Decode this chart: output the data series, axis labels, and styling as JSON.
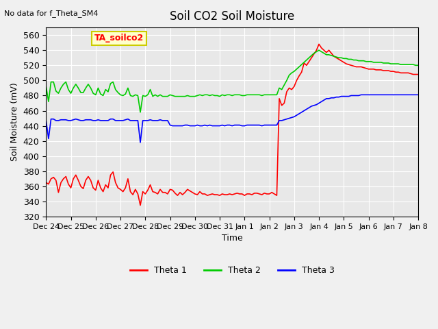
{
  "title": "Soil CO2 Soil Moisture",
  "top_left_note": "No data for f_Theta_SM4",
  "annotation_box": "TA_soilco2",
  "ylabel": "Soil Moisture (mV)",
  "xlabel": "Time",
  "ylim": [
    320,
    570
  ],
  "yticks": [
    320,
    340,
    360,
    380,
    400,
    420,
    440,
    460,
    480,
    500,
    520,
    540,
    560
  ],
  "xtick_labels": [
    "Dec 24",
    "Dec 25",
    "Dec 26",
    "Dec 27",
    "Dec 28",
    "Dec 29",
    "Dec 30",
    "Dec 31",
    "Jan 1",
    "Jan 2",
    "Jan 3",
    "Jan 4",
    "Jan 5",
    "Jan 6",
    "Jan 7",
    "Jan 8"
  ],
  "bg_color": "#e8e8e8",
  "grid_color": "#ffffff",
  "legend_labels": [
    "Theta 1",
    "Theta 2",
    "Theta 3"
  ],
  "legend_colors": [
    "#ff0000",
    "#00cc00",
    "#0000ff"
  ],
  "theta1_color": "#ff0000",
  "theta2_color": "#00cc00",
  "theta3_color": "#0000ff",
  "theta1": {
    "x": [
      0,
      0.1,
      0.2,
      0.3,
      0.4,
      0.5,
      0.6,
      0.7,
      0.8,
      0.9,
      1.0,
      1.1,
      1.2,
      1.3,
      1.4,
      1.5,
      1.6,
      1.7,
      1.8,
      1.9,
      2.0,
      2.1,
      2.2,
      2.3,
      2.4,
      2.5,
      2.6,
      2.7,
      2.8,
      2.9,
      3.0,
      3.1,
      3.2,
      3.3,
      3.4,
      3.5,
      3.6,
      3.7,
      3.8,
      3.9,
      4.0,
      4.1,
      4.2,
      4.3,
      4.4,
      4.5,
      4.6,
      4.7,
      4.8,
      4.9,
      5.0,
      5.1,
      5.2,
      5.3,
      5.4,
      5.5,
      5.6,
      5.7,
      5.8,
      5.9,
      6.0,
      6.1,
      6.2,
      6.3,
      6.4,
      6.5,
      6.6,
      6.7,
      6.8,
      6.9,
      7.0,
      7.1,
      7.2,
      7.3,
      7.4,
      7.5,
      7.6,
      7.7,
      7.8,
      7.9,
      8.0,
      8.1,
      8.2,
      8.3,
      8.4,
      8.5,
      8.6,
      8.7,
      8.8,
      8.9,
      9.0,
      9.1,
      9.2,
      9.3,
      9.4,
      9.5,
      9.6,
      9.7,
      9.8,
      9.9,
      10.0,
      10.1,
      10.2,
      10.3,
      10.4,
      10.5,
      10.6,
      10.7,
      10.8,
      10.9,
      11.0,
      11.1,
      11.2,
      11.3,
      11.4,
      11.5,
      11.6,
      11.7,
      11.8,
      11.9,
      12.0,
      12.1,
      12.2,
      12.3,
      12.4,
      12.5,
      12.6,
      12.7,
      12.8,
      12.9,
      13.0,
      13.1,
      13.2,
      13.3,
      13.4,
      13.5,
      13.6,
      13.7,
      13.8,
      13.9,
      14.0,
      14.1,
      14.2,
      14.3,
      14.4,
      14.5,
      14.6,
      14.7,
      14.8,
      14.9,
      15.0
    ],
    "y": [
      365,
      363,
      370,
      372,
      368,
      352,
      365,
      370,
      373,
      363,
      358,
      370,
      375,
      368,
      360,
      357,
      368,
      373,
      368,
      358,
      355,
      368,
      358,
      353,
      362,
      358,
      375,
      379,
      365,
      358,
      356,
      353,
      358,
      370,
      353,
      349,
      356,
      350,
      335,
      353,
      350,
      355,
      362,
      353,
      352,
      350,
      356,
      352,
      352,
      350,
      356,
      355,
      351,
      348,
      352,
      349,
      352,
      356,
      354,
      352,
      350,
      349,
      353,
      350,
      350,
      348,
      349,
      350,
      349,
      349,
      348,
      350,
      349,
      349,
      350,
      349,
      350,
      351,
      350,
      350,
      348,
      350,
      350,
      349,
      351,
      351,
      350,
      349,
      351,
      350,
      350,
      352,
      350,
      348,
      476,
      467,
      470,
      485,
      490,
      488,
      492,
      500,
      506,
      511,
      523,
      520,
      525,
      530,
      535,
      540,
      548,
      543,
      540,
      537,
      540,
      536,
      532,
      530,
      528,
      526,
      524,
      522,
      521,
      520,
      519,
      518,
      518,
      518,
      517,
      516,
      515,
      515,
      515,
      514,
      514,
      514,
      513,
      513,
      513,
      512,
      512,
      511,
      511,
      510,
      510,
      510,
      510,
      509,
      508,
      508,
      508
    ]
  },
  "theta2": {
    "x": [
      0,
      0.1,
      0.2,
      0.3,
      0.4,
      0.5,
      0.6,
      0.7,
      0.8,
      0.9,
      1.0,
      1.1,
      1.2,
      1.3,
      1.4,
      1.5,
      1.6,
      1.7,
      1.8,
      1.9,
      2.0,
      2.1,
      2.2,
      2.3,
      2.4,
      2.5,
      2.6,
      2.7,
      2.8,
      2.9,
      3.0,
      3.1,
      3.2,
      3.3,
      3.4,
      3.5,
      3.6,
      3.7,
      3.8,
      3.9,
      4.0,
      4.1,
      4.2,
      4.3,
      4.4,
      4.5,
      4.6,
      4.7,
      4.8,
      4.9,
      5.0,
      5.1,
      5.2,
      5.3,
      5.4,
      5.5,
      5.6,
      5.7,
      5.8,
      5.9,
      6.0,
      6.1,
      6.2,
      6.3,
      6.4,
      6.5,
      6.6,
      6.7,
      6.8,
      6.9,
      7.0,
      7.1,
      7.2,
      7.3,
      7.4,
      7.5,
      7.6,
      7.7,
      7.8,
      7.9,
      8.0,
      8.1,
      8.2,
      8.3,
      8.4,
      8.5,
      8.6,
      8.7,
      8.8,
      8.9,
      9.0,
      9.1,
      9.2,
      9.3,
      9.4,
      9.5,
      9.6,
      9.7,
      9.8,
      9.9,
      10.0,
      10.1,
      10.2,
      10.3,
      10.4,
      10.5,
      10.6,
      10.7,
      10.8,
      10.9,
      11.0,
      11.1,
      11.2,
      11.3,
      11.4,
      11.5,
      11.6,
      11.7,
      11.8,
      11.9,
      12.0,
      12.1,
      12.2,
      12.3,
      12.4,
      12.5,
      12.6,
      12.7,
      12.8,
      12.9,
      13.0,
      13.1,
      13.2,
      13.3,
      13.4,
      13.5,
      13.6,
      13.7,
      13.8,
      13.9,
      14.0,
      14.1,
      14.2,
      14.3,
      14.4,
      14.5,
      14.6,
      14.7,
      14.8,
      14.9,
      15.0
    ],
    "y": [
      492,
      472,
      498,
      498,
      486,
      483,
      490,
      495,
      498,
      488,
      483,
      490,
      495,
      490,
      484,
      484,
      490,
      495,
      490,
      483,
      481,
      490,
      482,
      480,
      488,
      485,
      496,
      498,
      488,
      484,
      481,
      480,
      482,
      490,
      480,
      479,
      481,
      480,
      458,
      480,
      479,
      481,
      488,
      479,
      481,
      479,
      481,
      479,
      479,
      479,
      481,
      480,
      479,
      479,
      479,
      479,
      479,
      480,
      479,
      479,
      479,
      480,
      481,
      480,
      481,
      481,
      480,
      481,
      480,
      480,
      479,
      481,
      480,
      481,
      481,
      480,
      481,
      481,
      481,
      480,
      480,
      481,
      481,
      481,
      481,
      481,
      481,
      480,
      481,
      481,
      481,
      481,
      481,
      481,
      490,
      488,
      494,
      500,
      507,
      510,
      512,
      515,
      518,
      521,
      524,
      527,
      530,
      533,
      536,
      538,
      540,
      538,
      536,
      534,
      534,
      533,
      532,
      531,
      530,
      530,
      529,
      529,
      528,
      528,
      527,
      527,
      526,
      526,
      526,
      525,
      525,
      525,
      524,
      524,
      524,
      524,
      523,
      523,
      523,
      522,
      522,
      522,
      522,
      521,
      521,
      521,
      521,
      521,
      521,
      520,
      520
    ]
  },
  "theta3": {
    "x": [
      0,
      0.1,
      0.2,
      0.3,
      0.4,
      0.5,
      0.6,
      0.7,
      0.8,
      0.9,
      1.0,
      1.1,
      1.2,
      1.3,
      1.4,
      1.5,
      1.6,
      1.7,
      1.8,
      1.9,
      2.0,
      2.1,
      2.2,
      2.3,
      2.4,
      2.5,
      2.6,
      2.7,
      2.8,
      2.9,
      3.0,
      3.1,
      3.2,
      3.3,
      3.4,
      3.5,
      3.6,
      3.7,
      3.8,
      3.9,
      4.0,
      4.1,
      4.2,
      4.3,
      4.4,
      4.5,
      4.6,
      4.7,
      4.8,
      4.9,
      5.0,
      5.1,
      5.2,
      5.3,
      5.4,
      5.5,
      5.6,
      5.7,
      5.8,
      5.9,
      6.0,
      6.1,
      6.2,
      6.3,
      6.4,
      6.5,
      6.6,
      6.7,
      6.8,
      6.9,
      7.0,
      7.1,
      7.2,
      7.3,
      7.4,
      7.5,
      7.6,
      7.7,
      7.8,
      7.9,
      8.0,
      8.1,
      8.2,
      8.3,
      8.4,
      8.5,
      8.6,
      8.7,
      8.8,
      8.9,
      9.0,
      9.1,
      9.2,
      9.3,
      9.4,
      9.5,
      9.6,
      9.7,
      9.8,
      9.9,
      10.0,
      10.1,
      10.2,
      10.3,
      10.4,
      10.5,
      10.6,
      10.7,
      10.8,
      10.9,
      11.0,
      11.1,
      11.2,
      11.3,
      11.4,
      11.5,
      11.6,
      11.7,
      11.8,
      11.9,
      12.0,
      12.1,
      12.2,
      12.3,
      12.4,
      12.5,
      12.6,
      12.7,
      12.8,
      12.9,
      13.0,
      13.1,
      13.2,
      13.3,
      13.4,
      13.5,
      13.6,
      13.7,
      13.8,
      13.9,
      14.0,
      14.1,
      14.2,
      14.3,
      14.4,
      14.5,
      14.6,
      14.7,
      14.8,
      14.9,
      15.0
    ],
    "y": [
      447,
      423,
      449,
      449,
      447,
      447,
      448,
      448,
      448,
      447,
      447,
      448,
      449,
      448,
      447,
      447,
      448,
      448,
      448,
      447,
      447,
      448,
      447,
      447,
      447,
      447,
      449,
      449,
      447,
      447,
      447,
      447,
      448,
      449,
      447,
      447,
      447,
      447,
      418,
      447,
      447,
      447,
      448,
      447,
      447,
      447,
      448,
      447,
      447,
      447,
      441,
      440,
      440,
      440,
      440,
      440,
      441,
      441,
      440,
      440,
      440,
      441,
      440,
      440,
      441,
      440,
      441,
      440,
      440,
      440,
      440,
      441,
      440,
      441,
      441,
      440,
      441,
      441,
      441,
      440,
      440,
      441,
      441,
      441,
      441,
      441,
      441,
      440,
      441,
      441,
      441,
      441,
      441,
      441,
      447,
      447,
      448,
      449,
      450,
      451,
      452,
      454,
      456,
      458,
      460,
      462,
      464,
      466,
      467,
      468,
      470,
      472,
      474,
      476,
      476,
      477,
      477,
      478,
      478,
      479,
      479,
      479,
      479,
      480,
      480,
      480,
      480,
      481,
      481,
      481,
      481,
      481,
      481,
      481,
      481,
      481,
      481,
      481,
      481,
      481,
      481,
      481,
      481,
      481,
      481,
      481,
      481,
      481,
      481,
      481,
      481
    ]
  }
}
